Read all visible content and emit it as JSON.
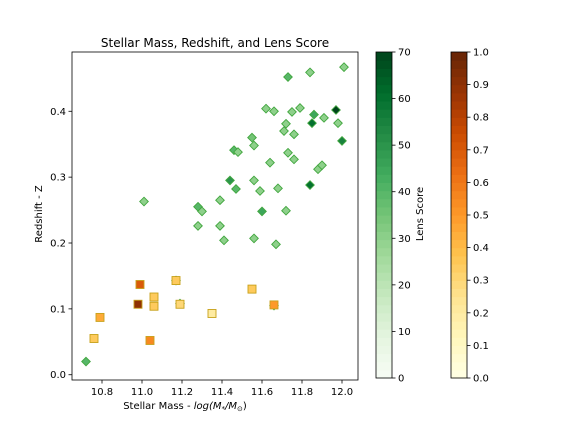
{
  "chart_data": {
    "type": "scatter",
    "title": "Stellar Mass, Redshift, and Lens Score",
    "xlabel_prefix": "Stellar Mass - ",
    "xlabel_math": "log(M",
    "xlabel_math_sub1": "*",
    "xlabel_math_mid": "/M",
    "xlabel_math_sub2": "⊙",
    "xlabel_math_end": ")",
    "ylabel": "Redshift - Z",
    "xlim": [
      10.65,
      12.08
    ],
    "ylim": [
      -0.008,
      0.49
    ],
    "xticks": [
      "10.8",
      "11.0",
      "11.2",
      "11.4",
      "11.6",
      "11.8",
      "12.0"
    ],
    "yticks": [
      "0.0",
      "0.1",
      "0.2",
      "0.3",
      "0.4"
    ],
    "colorbar_green": {
      "label": "Lens Score",
      "range": [
        0,
        70
      ],
      "ticks": [
        "0",
        "10",
        "20",
        "30",
        "40",
        "50",
        "60",
        "70"
      ],
      "low_color": "#f7fcf5",
      "high_color": "#00441b"
    },
    "colorbar_orange": {
      "range": [
        0,
        1
      ],
      "ticks": [
        "0.0",
        "0.1",
        "0.2",
        "0.3",
        "0.4",
        "0.5",
        "0.6",
        "0.7",
        "0.8",
        "0.9",
        "1.0"
      ],
      "low_color": "#ffffe5",
      "high_color": "#662506"
    },
    "series": [
      {
        "marker": "diamond",
        "colormap": "green",
        "points": [
          [
            10.72,
            0.02,
            40
          ],
          [
            11.01,
            0.263,
            30
          ],
          [
            11.17,
            0.143,
            35
          ],
          [
            11.19,
            0.108,
            30
          ],
          [
            11.28,
            0.226,
            30
          ],
          [
            11.28,
            0.255,
            40
          ],
          [
            11.3,
            0.248,
            30
          ],
          [
            11.39,
            0.265,
            30
          ],
          [
            11.39,
            0.226,
            30
          ],
          [
            11.41,
            0.204,
            30
          ],
          [
            11.44,
            0.295,
            50
          ],
          [
            11.46,
            0.341,
            40
          ],
          [
            11.47,
            0.282,
            40
          ],
          [
            11.48,
            0.338,
            30
          ],
          [
            11.55,
            0.36,
            35
          ],
          [
            11.56,
            0.348,
            30
          ],
          [
            11.56,
            0.295,
            30
          ],
          [
            11.56,
            0.207,
            30
          ],
          [
            11.59,
            0.279,
            30
          ],
          [
            11.6,
            0.248,
            45
          ],
          [
            11.62,
            0.404,
            30
          ],
          [
            11.64,
            0.322,
            30
          ],
          [
            11.66,
            0.4,
            30
          ],
          [
            11.67,
            0.198,
            30
          ],
          [
            11.68,
            0.283,
            30
          ],
          [
            11.71,
            0.37,
            30
          ],
          [
            11.72,
            0.381,
            30
          ],
          [
            11.72,
            0.249,
            30
          ],
          [
            11.73,
            0.337,
            30
          ],
          [
            11.73,
            0.452,
            40
          ],
          [
            11.75,
            0.399,
            30
          ],
          [
            11.76,
            0.365,
            30
          ],
          [
            11.76,
            0.327,
            30
          ],
          [
            11.79,
            0.405,
            30
          ],
          [
            11.84,
            0.459,
            30
          ],
          [
            11.84,
            0.288,
            60
          ],
          [
            11.85,
            0.382,
            60
          ],
          [
            11.86,
            0.395,
            45
          ],
          [
            11.88,
            0.312,
            30
          ],
          [
            11.9,
            0.318,
            30
          ],
          [
            11.91,
            0.39,
            30
          ],
          [
            11.97,
            0.402,
            70
          ],
          [
            11.98,
            0.382,
            30
          ],
          [
            12.0,
            0.355,
            55
          ],
          [
            12.01,
            0.467,
            30
          ],
          [
            11.66,
            0.105,
            70
          ]
        ]
      },
      {
        "marker": "square",
        "colormap": "orange",
        "points": [
          [
            10.76,
            0.055,
            0.35
          ],
          [
            10.79,
            0.087,
            0.45
          ],
          [
            10.98,
            0.107,
            0.9
          ],
          [
            10.99,
            0.137,
            0.7
          ],
          [
            11.04,
            0.052,
            0.55
          ],
          [
            11.06,
            0.118,
            0.35
          ],
          [
            11.06,
            0.104,
            0.35
          ],
          [
            11.17,
            0.143,
            0.35
          ],
          [
            11.19,
            0.107,
            0.3
          ],
          [
            11.35,
            0.093,
            0.2
          ],
          [
            11.55,
            0.13,
            0.35
          ],
          [
            11.66,
            0.106,
            0.5
          ]
        ]
      }
    ]
  }
}
